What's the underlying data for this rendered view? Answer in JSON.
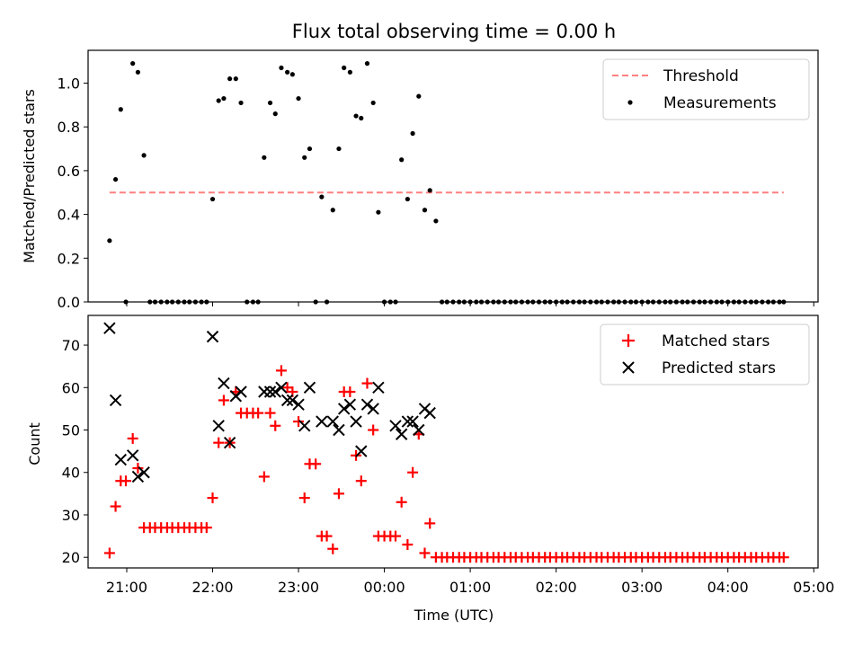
{
  "chart_data": {
    "type": "scatter",
    "title": "Flux total observing time = 0.00 h",
    "xlabel": "Time (UTC)",
    "x_range_hours": [
      -3.45,
      5.05
    ],
    "x_ticks": [
      {
        "value": -3,
        "label": "21:00"
      },
      {
        "value": -2,
        "label": "22:00"
      },
      {
        "value": -1,
        "label": "23:00"
      },
      {
        "value": 0,
        "label": "00:00"
      },
      {
        "value": 1,
        "label": "01:00"
      },
      {
        "value": 2,
        "label": "02:00"
      },
      {
        "value": 3,
        "label": "03:00"
      },
      {
        "value": 4,
        "label": "04:00"
      },
      {
        "value": 5,
        "label": "05:00"
      }
    ],
    "top_panel": {
      "ylabel": "Matched/Predicted stars",
      "ylim": [
        0,
        1.15
      ],
      "yticks": [
        "0.0",
        "0.2",
        "0.4",
        "0.6",
        "0.8",
        "1.0"
      ],
      "threshold": {
        "name": "Threshold",
        "value": 0.5,
        "color": "#ff7f7f",
        "x_start": -3.2,
        "x_end": 4.65
      },
      "measurements": {
        "name": "Measurements",
        "color": "#000000",
        "x": [
          -3.2,
          -3.13,
          -3.07,
          -3.01,
          -2.93,
          -2.87,
          -2.8,
          -2.73,
          -2.67,
          -2.6,
          -2.53,
          -2.47,
          -2.4,
          -2.33,
          -2.27,
          -2.2,
          -2.13,
          -2.07,
          -2.0,
          -1.93,
          -1.87,
          -1.8,
          -1.73,
          -1.67,
          -1.6,
          -1.53,
          -1.47,
          -1.4,
          -1.33,
          -1.27,
          -1.2,
          -1.13,
          -1.07,
          -1.0,
          -0.93,
          -0.87,
          -0.8,
          -0.73,
          -0.67,
          -0.6,
          -0.53,
          -0.47,
          -0.4,
          -0.33,
          -0.27,
          -0.2,
          -0.13,
          -0.07,
          0.0,
          0.07,
          0.13,
          0.2,
          0.27,
          0.33,
          0.4,
          0.47,
          0.53,
          0.6,
          0.67,
          0.73,
          0.8,
          0.87,
          0.93,
          1.0,
          1.07,
          1.13,
          1.2,
          1.27,
          1.33,
          1.4,
          1.47,
          1.53,
          1.6,
          1.67,
          1.73,
          1.8,
          1.87,
          1.93,
          2.0,
          2.07,
          2.13,
          2.2,
          2.27,
          2.33,
          2.4,
          2.47,
          2.53,
          2.6,
          2.67,
          2.73,
          2.8,
          2.87,
          2.93,
          3.0,
          3.07,
          3.13,
          3.2,
          3.27,
          3.33,
          3.4,
          3.47,
          3.53,
          3.6,
          3.67,
          3.73,
          3.8,
          3.87,
          3.93,
          4.0,
          4.07,
          4.13,
          4.2,
          4.27,
          4.33,
          4.4,
          4.47,
          4.53,
          4.6,
          4.65
        ],
        "y": [
          0.28,
          0.56,
          0.88,
          0.0,
          1.09,
          1.05,
          0.67,
          0.0,
          0.0,
          0.0,
          0.0,
          0.0,
          0.0,
          0.0,
          0.0,
          0.0,
          0.0,
          0.0,
          0.47,
          0.92,
          0.93,
          1.02,
          1.02,
          0.91,
          0.0,
          0.0,
          0.0,
          0.66,
          0.91,
          0.86,
          1.07,
          1.05,
          1.04,
          0.93,
          0.66,
          0.7,
          0.0,
          0.48,
          0.0,
          0.42,
          0.7,
          1.07,
          1.05,
          0.85,
          0.84,
          1.09,
          0.91,
          0.41,
          0.0,
          0.0,
          0.0,
          0.65,
          0.47,
          0.77,
          0.94,
          0.42,
          0.51,
          0.37,
          0.0,
          0.0,
          0.0,
          0.0,
          0.0,
          0.0,
          0.0,
          0.0,
          0.0,
          0.0,
          0.0,
          0.0,
          0.0,
          0.0,
          0.0,
          0.0,
          0.0,
          0.0,
          0.0,
          0.0,
          0.0,
          0.0,
          0.0,
          0.0,
          0.0,
          0.0,
          0.0,
          0.0,
          0.0,
          0.0,
          0.0,
          0.0,
          0.0,
          0.0,
          0.0,
          0.0,
          0.0,
          0.0,
          0.0,
          0.0,
          0.0,
          0.0,
          0.0,
          0.0,
          0.0,
          0.0,
          0.0,
          0.0,
          0.0,
          0.0,
          0.0,
          0.0,
          0.0,
          0.0,
          0.0,
          0.0,
          0.0,
          0.0,
          0.0,
          0.0,
          0.0
        ]
      },
      "legend_location": "upper right"
    },
    "bottom_panel": {
      "ylabel": "Count",
      "ylim": [
        17.5,
        77
      ],
      "yticks": [
        "20",
        "30",
        "40",
        "50",
        "60",
        "70"
      ],
      "matched": {
        "name": "Matched stars",
        "color": "#ff0000",
        "x": [
          -3.2,
          -3.13,
          -3.07,
          -3.01,
          -2.93,
          -2.87,
          -2.8,
          -2.73,
          -2.67,
          -2.6,
          -2.53,
          -2.47,
          -2.4,
          -2.33,
          -2.27,
          -2.2,
          -2.13,
          -2.07,
          -2.0,
          -1.93,
          -1.87,
          -1.8,
          -1.73,
          -1.67,
          -1.6,
          -1.53,
          -1.47,
          -1.4,
          -1.33,
          -1.27,
          -1.2,
          -1.13,
          -1.07,
          -1.0,
          -0.93,
          -0.87,
          -0.8,
          -0.73,
          -0.67,
          -0.6,
          -0.53,
          -0.47,
          -0.4,
          -0.33,
          -0.27,
          -0.2,
          -0.13,
          -0.07,
          0.0,
          0.07,
          0.13,
          0.2,
          0.27,
          0.33,
          0.4,
          0.47,
          0.53,
          0.6,
          0.67,
          0.73,
          0.8,
          0.87,
          0.93,
          1.0,
          1.07,
          1.13,
          1.2,
          1.27,
          1.33,
          1.4,
          1.47,
          1.53,
          1.6,
          1.67,
          1.73,
          1.8,
          1.87,
          1.93,
          2.0,
          2.07,
          2.13,
          2.2,
          2.27,
          2.33,
          2.4,
          2.47,
          2.53,
          2.6,
          2.67,
          2.73,
          2.8,
          2.87,
          2.93,
          3.0,
          3.07,
          3.13,
          3.2,
          3.27,
          3.33,
          3.4,
          3.47,
          3.53,
          3.6,
          3.67,
          3.73,
          3.8,
          3.87,
          3.93,
          4.0,
          4.07,
          4.13,
          4.2,
          4.27,
          4.33,
          4.4,
          4.47,
          4.53,
          4.6,
          4.65
        ],
        "y": [
          21,
          32,
          38,
          38,
          48,
          41,
          27,
          27,
          27,
          27,
          27,
          27,
          27,
          27,
          27,
          27,
          27,
          27,
          34,
          47,
          57,
          47,
          59,
          54,
          54,
          54,
          54,
          39,
          54,
          51,
          64,
          60,
          59,
          52,
          34,
          42,
          42,
          25,
          25,
          22,
          35,
          59,
          59,
          44,
          38,
          61,
          50,
          25,
          25,
          25,
          25,
          33,
          23,
          40,
          49,
          21,
          28,
          20,
          20,
          20,
          20,
          20,
          20,
          20,
          20,
          20,
          20,
          20,
          20,
          20,
          20,
          20,
          20,
          20,
          20,
          20,
          20,
          20,
          20,
          20,
          20,
          20,
          20,
          20,
          20,
          20,
          20,
          20,
          20,
          20,
          20,
          20,
          20,
          20,
          20,
          20,
          20,
          20,
          20,
          20,
          20,
          20,
          20,
          20,
          20,
          20,
          20,
          20,
          20,
          20,
          20,
          20,
          20,
          20,
          20,
          20,
          20,
          20,
          20
        ]
      },
      "predicted": {
        "name": "Predicted stars",
        "color": "#000000",
        "x": [
          -3.2,
          -3.13,
          -3.07,
          -2.93,
          -2.87,
          -2.8,
          -2.0,
          -1.93,
          -1.87,
          -1.8,
          -1.73,
          -1.67,
          -1.4,
          -1.33,
          -1.27,
          -1.2,
          -1.13,
          -1.07,
          -1.0,
          -0.93,
          -0.87,
          -0.73,
          -0.6,
          -0.53,
          -0.47,
          -0.4,
          -0.33,
          -0.27,
          -0.2,
          -0.13,
          -0.07,
          0.13,
          0.2,
          0.27,
          0.33,
          0.4,
          0.47,
          0.53
        ],
        "y": [
          74,
          57,
          43,
          44,
          39,
          40,
          72,
          51,
          61,
          47,
          58,
          59,
          59,
          59,
          59,
          60,
          57,
          57,
          56,
          51,
          60,
          52,
          52,
          50,
          55,
          56,
          52,
          45,
          56,
          55,
          60,
          51,
          49,
          52,
          52,
          50,
          55,
          54
        ]
      },
      "legend_location": "upper right"
    }
  }
}
